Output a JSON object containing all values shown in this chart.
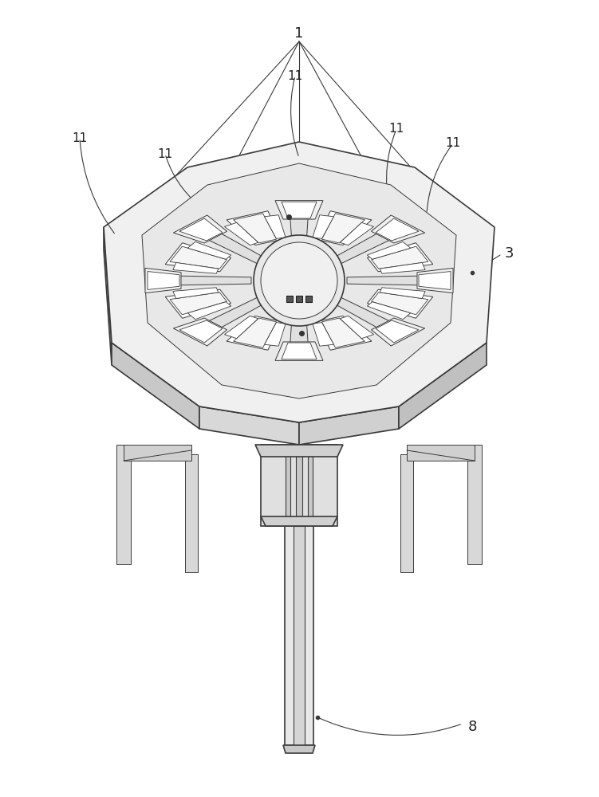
{
  "bg_color": "#ffffff",
  "line_color": "#3a3a3a",
  "light_line_color": "#888888",
  "fill_color": "#e8e8e8",
  "dark_fill": "#c0c0c0",
  "label_color": "#222222",
  "figsize": [
    7.51,
    10.0
  ],
  "dpi": 100
}
